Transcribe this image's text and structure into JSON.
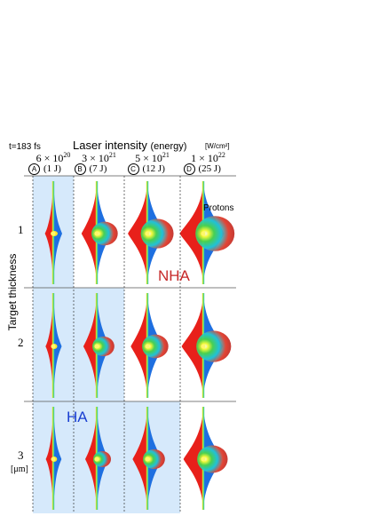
{
  "header": {
    "time_label": "t=183 fs",
    "title_main": "Laser intensity",
    "title_paren": "(energy)",
    "unit": "[W/cm²]"
  },
  "columns": [
    {
      "letter": "A",
      "mantissa": "6",
      "exponent": "20",
      "energy": "(1 J)"
    },
    {
      "letter": "B",
      "mantissa": "3",
      "exponent": "21",
      "energy": "(7 J)"
    },
    {
      "letter": "C",
      "mantissa": "5",
      "exponent": "21",
      "energy": "(12 J)"
    },
    {
      "letter": "D",
      "mantissa": "1",
      "exponent": "22",
      "energy": "(25 J)"
    }
  ],
  "rows": [
    {
      "label": "1",
      "unit": ""
    },
    {
      "label": "2",
      "unit": ""
    },
    {
      "label": "3",
      "unit": "[μm]"
    }
  ],
  "axis_label": "Target thickness",
  "annotations": {
    "protons": "Protons",
    "nha": "NHA",
    "ha": "HA"
  },
  "colors": {
    "nha": "#c62828",
    "ha": "#1a3fd1",
    "highlight": "#d6e9fb",
    "red_ions": "#e8201a",
    "blue_ions": "#1e6fe0"
  },
  "highlight_cells": [
    [
      0,
      0
    ],
    [
      1,
      0
    ],
    [
      1,
      1
    ],
    [
      2,
      0
    ],
    [
      2,
      1
    ],
    [
      2,
      2
    ]
  ],
  "plume_levels": [
    [
      0.1,
      0.55,
      0.78,
      1.0
    ],
    [
      0.05,
      0.4,
      0.55,
      0.85
    ],
    [
      0.03,
      0.25,
      0.4,
      0.7
    ]
  ]
}
